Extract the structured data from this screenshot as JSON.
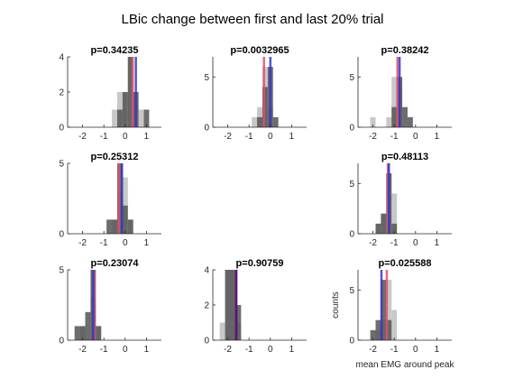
{
  "chart_data": {
    "type": "bar",
    "title": "LBic change between first and last 20% trial",
    "xlabel": "mean EMG around peak",
    "ylabel": "counts",
    "bin_width": 0.25,
    "colors": {
      "dark": "#545454",
      "light": "#c8c8c8",
      "overlap": "#3c3c3c",
      "red_line": "#e0506c",
      "blue_line": "#3535c8",
      "purple_line": "#5a1080"
    },
    "panels": [
      {
        "p_label": "p=0.34235",
        "xlim": [
          -2.7,
          1.7
        ],
        "ylim": [
          0,
          4
        ],
        "xticks": [
          "-2",
          "-1",
          "0",
          "1"
        ],
        "xtick_values": [
          -2,
          -1,
          0,
          1
        ],
        "yticks": [
          "0",
          "2",
          "4"
        ],
        "ytick_values": [
          0,
          2,
          4
        ],
        "light_bars": [
          {
            "x": -0.5,
            "c": 1
          },
          {
            "x": -0.25,
            "c": 2
          },
          {
            "x": 0,
            "c": 2
          },
          {
            "x": 0.25,
            "c": 4
          },
          {
            "x": 0.5,
            "c": 2
          },
          {
            "x": 0.75,
            "c": 1
          }
        ],
        "dark_bars": [
          {
            "x": -0.25,
            "c": 1
          },
          {
            "x": 0,
            "c": 2
          },
          {
            "x": 0.25,
            "c": 4
          },
          {
            "x": 0.5,
            "c": 2
          },
          {
            "x": 1,
            "c": 1
          }
        ],
        "red_mean": 0.35,
        "blue_mean": 0.5
      },
      {
        "p_label": "p=0.0032965",
        "xlim": [
          -2.7,
          1.7
        ],
        "ylim": [
          0,
          7
        ],
        "xticks": [
          "-2",
          "-1",
          "0",
          "1"
        ],
        "xtick_values": [
          -2,
          -1,
          0,
          1
        ],
        "yticks": [
          "0",
          "5"
        ],
        "ytick_values": [
          0,
          5
        ],
        "light_bars": [
          {
            "x": -0.75,
            "c": 1
          },
          {
            "x": -0.5,
            "c": 2
          },
          {
            "x": -0.25,
            "c": 6
          },
          {
            "x": 0,
            "c": 2
          }
        ],
        "dark_bars": [
          {
            "x": -0.5,
            "c": 1
          },
          {
            "x": -0.25,
            "c": 4
          },
          {
            "x": 0,
            "c": 6
          },
          {
            "x": 0.25,
            "c": 1
          }
        ],
        "red_mean": -0.3,
        "blue_mean": 0.0
      },
      {
        "p_label": "p=0.38242",
        "xlim": [
          -2.7,
          1.7
        ],
        "ylim": [
          0,
          7
        ],
        "xticks": [
          "-2",
          "-1",
          "0",
          "1"
        ],
        "xtick_values": [
          -2,
          -1,
          0,
          1
        ],
        "yticks": [
          "0",
          "5"
        ],
        "ytick_values": [
          0,
          5
        ],
        "light_bars": [
          {
            "x": -2.0,
            "c": 1
          },
          {
            "x": -1.25,
            "c": 1
          },
          {
            "x": -1.0,
            "c": 5
          },
          {
            "x": -0.75,
            "c": 4
          }
        ],
        "dark_bars": [
          {
            "x": -1.0,
            "c": 2
          },
          {
            "x": -0.75,
            "c": 5
          },
          {
            "x": -0.5,
            "c": 2
          },
          {
            "x": -0.25,
            "c": 1
          }
        ],
        "red_mean": -0.85,
        "blue_mean": -0.75
      },
      {
        "p_label": "p=0.25312",
        "xlim": [
          -2.7,
          1.7
        ],
        "ylim": [
          0,
          5
        ],
        "xticks": [
          "-2",
          "-1",
          "0",
          "1"
        ],
        "xtick_values": [
          -2,
          -1,
          0,
          1
        ],
        "yticks": [
          "0",
          "5"
        ],
        "ytick_values": [
          0,
          5
        ],
        "light_bars": [
          {
            "x": -0.5,
            "c": 1
          },
          {
            "x": -0.25,
            "c": 3
          },
          {
            "x": 0,
            "c": 4
          },
          {
            "x": 0.25,
            "c": 1
          }
        ],
        "dark_bars": [
          {
            "x": -0.75,
            "c": 1
          },
          {
            "x": -0.5,
            "c": 1
          },
          {
            "x": -0.25,
            "c": 5
          },
          {
            "x": 0,
            "c": 2
          },
          {
            "x": 0.25,
            "c": 1
          }
        ],
        "red_mean": -0.3,
        "blue_mean": -0.15
      },
      null,
      {
        "p_label": "p=0.48113",
        "xlim": [
          -2.7,
          1.7
        ],
        "ylim": [
          0,
          7
        ],
        "xticks": [
          "-2",
          "-1",
          "0",
          "1"
        ],
        "xtick_values": [
          -2,
          -1,
          0,
          1
        ],
        "yticks": [
          "0",
          "5"
        ],
        "ytick_values": [
          0,
          5
        ],
        "light_bars": [
          {
            "x": -1.75,
            "c": 1
          },
          {
            "x": -1.5,
            "c": 2
          },
          {
            "x": -1.25,
            "c": 6
          },
          {
            "x": -1.0,
            "c": 4
          }
        ],
        "dark_bars": [
          {
            "x": -1.75,
            "c": 1
          },
          {
            "x": -1.5,
            "c": 2
          },
          {
            "x": -1.25,
            "c": 6
          },
          {
            "x": -1.0,
            "c": 1
          }
        ],
        "red_mean": -1.3,
        "blue_mean": -1.25
      },
      {
        "p_label": "p=0.23074",
        "xlim": [
          -2.7,
          1.7
        ],
        "ylim": [
          0,
          5
        ],
        "xticks": [
          "-2",
          "-1",
          "0",
          "1"
        ],
        "xtick_values": [
          -2,
          -1,
          0,
          1
        ],
        "yticks": [
          "0",
          "5"
        ],
        "ytick_values": [
          0,
          5
        ],
        "light_bars": [
          {
            "x": -2.0,
            "c": 1
          },
          {
            "x": -1.5,
            "c": 3
          },
          {
            "x": -1.25,
            "c": 1
          }
        ],
        "dark_bars": [
          {
            "x": -2.25,
            "c": 1
          },
          {
            "x": -2.0,
            "c": 1
          },
          {
            "x": -1.75,
            "c": 2
          },
          {
            "x": -1.5,
            "c": 5
          },
          {
            "x": -1.25,
            "c": 1
          }
        ],
        "red_mean": -1.45,
        "blue_mean": -1.5
      },
      {
        "p_label": "p=0.90759",
        "xlim": [
          -2.7,
          1.7
        ],
        "ylim": [
          0,
          4
        ],
        "xticks": [
          "-2",
          "-1",
          "0",
          "1"
        ],
        "xtick_values": [
          -2,
          -1,
          0,
          1
        ],
        "yticks": [
          "0",
          "2",
          "4"
        ],
        "ytick_values": [
          0,
          2,
          4
        ],
        "light_bars": [
          {
            "x": -2.25,
            "c": 1
          },
          {
            "x": -2.0,
            "c": 4
          },
          {
            "x": -1.75,
            "c": 4
          },
          {
            "x": -1.5,
            "c": 1
          }
        ],
        "dark_bars": [
          {
            "x": -2.0,
            "c": 4
          },
          {
            "x": -1.75,
            "c": 4
          },
          {
            "x": -1.5,
            "c": 2
          }
        ],
        "red_mean": -1.6,
        "blue_mean": -1.6
      },
      {
        "p_label": "p=0.025588",
        "xlim": [
          -2.7,
          1.7
        ],
        "ylim": [
          0,
          7
        ],
        "xticks": [
          "-2",
          "-1",
          "0",
          "1"
        ],
        "xtick_values": [
          -2,
          -1,
          0,
          1
        ],
        "yticks": [
          "0",
          "5"
        ],
        "ytick_values": [
          0,
          5
        ],
        "show_xlabel": true,
        "show_ylabel": true,
        "light_bars": [
          {
            "x": -1.75,
            "c": 1
          },
          {
            "x": -1.5,
            "c": 2
          },
          {
            "x": -1.25,
            "c": 6
          },
          {
            "x": -1.0,
            "c": 3
          }
        ],
        "dark_bars": [
          {
            "x": -2.0,
            "c": 1
          },
          {
            "x": -1.75,
            "c": 2
          },
          {
            "x": -1.5,
            "c": 6
          },
          {
            "x": -1.25,
            "c": 2
          }
        ],
        "red_mean": -1.35,
        "blue_mean": -1.6
      }
    ]
  }
}
